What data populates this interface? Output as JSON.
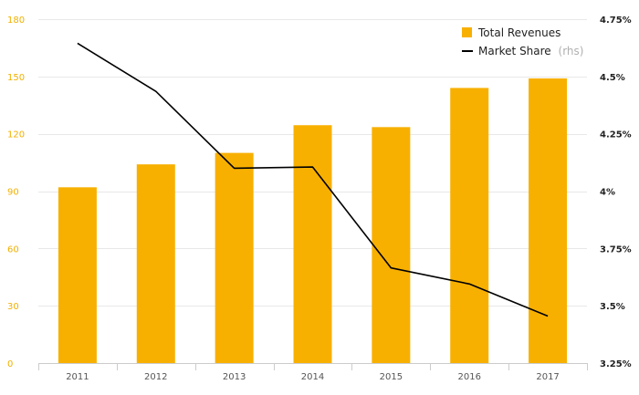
{
  "colors": {
    "bar": "#f8b000",
    "line": "#000000",
    "left_axis_text": "#f0b000",
    "right_axis_text": "#222222",
    "x_axis_text": "#555555",
    "grid": "#e8e8e8",
    "axis": "#cccccc",
    "legend_text": "#222222",
    "legend_suffix": "#b0b0b0"
  },
  "chart_data": {
    "type": "bar",
    "categories": [
      "2011",
      "2012",
      "2013",
      "2014",
      "2015",
      "2016",
      "2017"
    ],
    "series": [
      {
        "name": "Total Revenues",
        "kind": "bar",
        "axis": "left",
        "values": [
          92,
          104,
          110,
          124.5,
          123.5,
          144,
          149
        ]
      },
      {
        "name": "Market Share",
        "name_suffix": "(rhs)",
        "kind": "line",
        "axis": "right",
        "values": [
          4.645,
          4.435,
          4.1,
          4.105,
          3.665,
          3.595,
          3.455
        ]
      }
    ],
    "y_left": {
      "min": 0,
      "max": 180,
      "ticks": [
        0,
        30,
        60,
        90,
        120,
        150,
        180
      ],
      "tick_labels": [
        "0",
        "30",
        "60",
        "90",
        "120",
        "150",
        "180"
      ]
    },
    "y_right": {
      "min": 3.25,
      "max": 4.75,
      "ticks": [
        3.25,
        3.5,
        3.75,
        4,
        4.25,
        4.5,
        4.75
      ],
      "tick_labels": [
        "3.25%",
        "3.5%",
        "3.75%",
        "4%",
        "4.25%",
        "4.5%",
        "4.75%"
      ]
    },
    "grid": true,
    "legend": "top-right",
    "title": "",
    "xlabel": "",
    "ylabel": ""
  }
}
